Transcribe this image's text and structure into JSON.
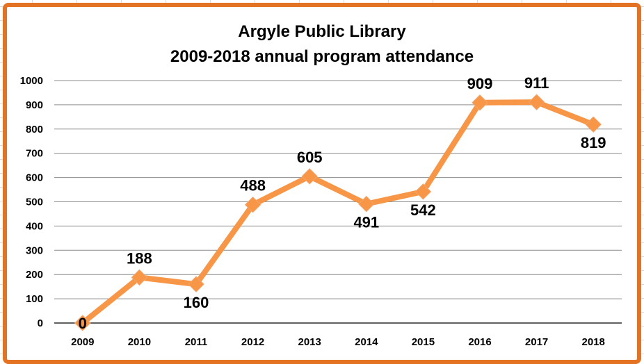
{
  "chart_data": {
    "type": "line",
    "title": "Argyle Public Library",
    "subtitle": "2009-2018 annual program attendance",
    "categories": [
      "2009",
      "2010",
      "2011",
      "2012",
      "2013",
      "2014",
      "2015",
      "2016",
      "2017",
      "2018"
    ],
    "series": [
      {
        "values": [
          0,
          188,
          160,
          488,
          605,
          491,
          542,
          909,
          911,
          819
        ]
      }
    ],
    "ylim": [
      0,
      1000
    ],
    "yticks": [
      "0",
      "100",
      "200",
      "300",
      "400",
      "500",
      "600",
      "700",
      "800",
      "900",
      "1000"
    ],
    "grid": true,
    "legend": "none",
    "line_color": "#f79646",
    "frame_color": "#e37222",
    "data_labels": [
      "0",
      "188",
      "160",
      "488",
      "605",
      "491",
      "542",
      "909",
      "911",
      "819"
    ]
  }
}
